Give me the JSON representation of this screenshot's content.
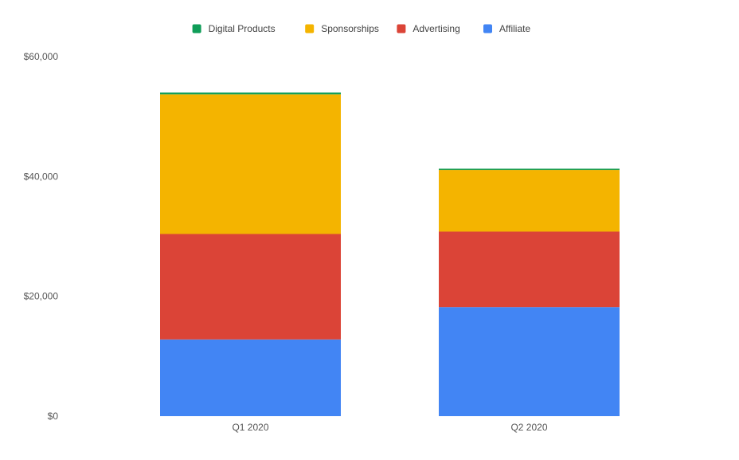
{
  "chart_data": {
    "type": "bar",
    "stacked": true,
    "categories": [
      "Q1 2020",
      "Q2 2020"
    ],
    "series": [
      {
        "name": "Affiliate",
        "color": "#4285F4",
        "values": [
          12800,
          18200
        ]
      },
      {
        "name": "Advertising",
        "color": "#DB4437",
        "values": [
          17600,
          12600
        ]
      },
      {
        "name": "Sponsorships",
        "color": "#F4B400",
        "values": [
          23300,
          10300
        ]
      },
      {
        "name": "Digital Products",
        "color": "#0F9D58",
        "values": [
          300,
          200
        ]
      }
    ],
    "legend_order": [
      "Digital Products",
      "Sponsorships",
      "Advertising",
      "Affiliate"
    ],
    "legend_position": "top",
    "ylim": [
      0,
      60000
    ],
    "yticks": [
      0,
      20000,
      40000,
      60000
    ],
    "ytick_labels": [
      "$0",
      "$20,000",
      "$40,000",
      "$60,000"
    ],
    "grid": false,
    "title": "",
    "xlabel": "",
    "ylabel": ""
  }
}
